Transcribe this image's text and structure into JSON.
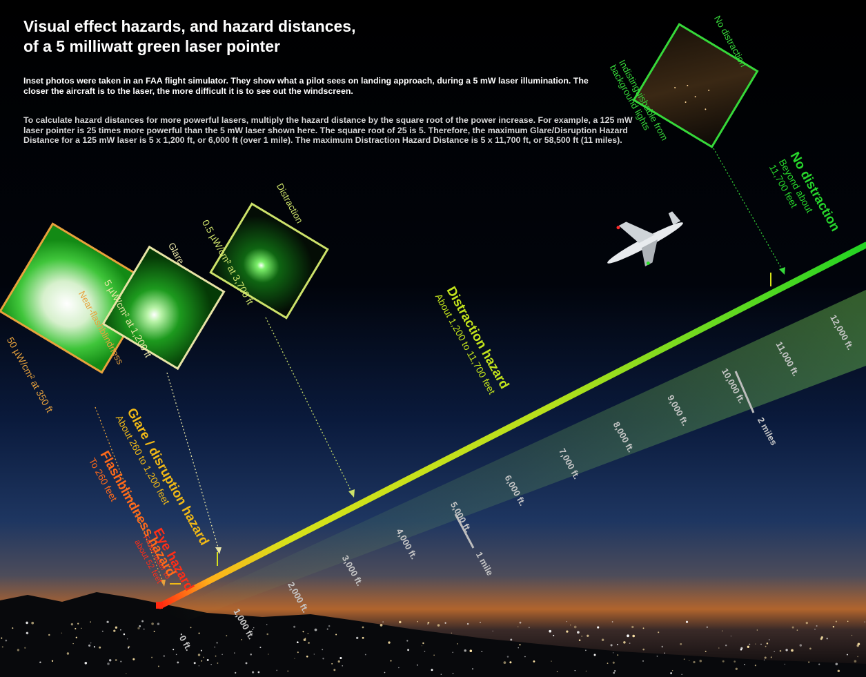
{
  "title_lines": [
    "Visual effect hazards, and hazard distances,",
    "of a 5 milliwatt green laser pointer"
  ],
  "intro_text": "Inset photos were taken in an FAA flight simulator. They show what a pilot sees on landing approach, during a 5 mW laser illumination. The closer the aircraft is to the laser, the more difficult it is to see out the windscreen.",
  "calc_text": "To calculate hazard distances for more powerful lasers, multiply the hazard distance by the square root of the power increase. For example, a 125 mW laser pointer is 25 times more powerful than the 5 mW laser shown here. The square root of 25 is 5. Therefore, the maximum Glare/Disruption Hazard Distance for a 125 mW laser is 5 x 1,200 ft, or 6,000 ft (over 1 mile). The maximum Distraction Hazard Distance is 5 x 11,700 ft, or 58,500 ft (11 miles).",
  "insets": [
    {
      "id": "flashblind",
      "label": "Near-flashblindness",
      "caption": "50 µW/cm² at 350 ft",
      "color": "#e8a23c"
    },
    {
      "id": "glare",
      "label": "Glare",
      "caption": "5 µW/cm² at 1,200 ft",
      "color": "#e8e4a6"
    },
    {
      "id": "distraction",
      "label": "Distraction",
      "caption": "0.5 µW/cm² at 3,700 ft",
      "color": "#cde26a"
    },
    {
      "id": "none",
      "label": "No distraction",
      "caption": "Indistinguishable from background lights",
      "color": "#36d83a"
    }
  ],
  "hazards": [
    {
      "id": "eye",
      "title": "Eye hazard",
      "sub": "From laser to about 52 feet",
      "color": "#ff2e16"
    },
    {
      "id": "flash",
      "title": "Flashblindness hazard",
      "sub": "To 260 feet",
      "color": "#ff6a1a"
    },
    {
      "id": "glare",
      "title": "Glare / disruption hazard",
      "sub": "About 260 to 1,200 feet",
      "color": "#f1b916"
    },
    {
      "id": "distraction",
      "title": "Distraction hazard",
      "sub": "About 1,200 to 11,700 feet",
      "color": "#c3e41c"
    },
    {
      "id": "none",
      "title": "No distraction",
      "sub": "Beyond about 11,700 feet",
      "color": "#27d62c"
    }
  ],
  "distance_ticks": [
    "0 ft.",
    "1,000 ft.",
    "2,000 ft.",
    "3,000 ft.",
    "4,000 ft.",
    "5,000 ft.",
    "6,000 ft.",
    "7,000 ft.",
    "8,000 ft.",
    "9,000 ft.",
    "10,000 ft.",
    "11,000 ft.",
    "12,000 ft."
  ],
  "mile_markers": [
    "1 mile",
    "2 miles"
  ],
  "colors": {
    "beam_start": "#ff2a10",
    "beam_mid": "#d8e21a",
    "beam_end": "#22d423",
    "sky_low": "#c4682a",
    "sky_mid": "#132a55"
  }
}
